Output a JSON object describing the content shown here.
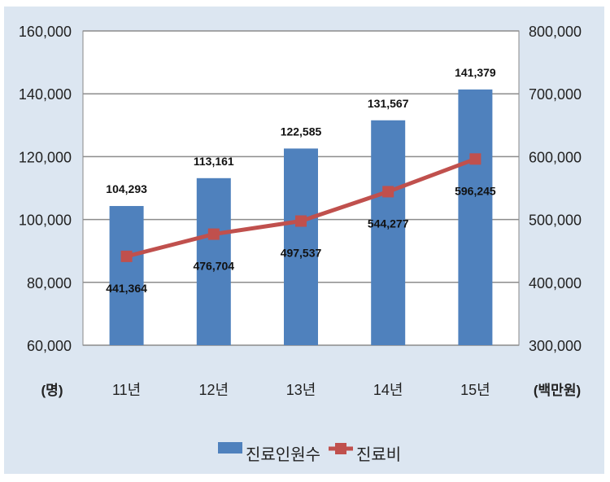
{
  "chart_data": {
    "type": "bar+line",
    "categories": [
      "11년",
      "12년",
      "13년",
      "14년",
      "15년"
    ],
    "series": [
      {
        "name": "진료인원수",
        "type": "bar",
        "axis": "left",
        "color": "#4f81bd",
        "values": [
          104293,
          113161,
          122585,
          131567,
          141379
        ],
        "labels": [
          "104,293",
          "113,161",
          "122,585",
          "131,567",
          "141,379"
        ]
      },
      {
        "name": "진료비",
        "type": "line",
        "axis": "right",
        "color": "#c0504d",
        "values": [
          441364,
          476704,
          497537,
          544277,
          596245
        ],
        "labels": [
          "441,364",
          "476,704",
          "497,537",
          "544,277",
          "596,245"
        ]
      }
    ],
    "y_left": {
      "range": [
        60000,
        160000
      ],
      "ticks": [
        "60,000",
        "80,000",
        "100,000",
        "120,000",
        "140,000",
        "160,000"
      ],
      "unit": "(명)"
    },
    "y_right": {
      "range": [
        300000,
        800000
      ],
      "ticks": [
        "300,000",
        "400,000",
        "500,000",
        "600,000",
        "700,000",
        "800,000"
      ],
      "unit": "(백만원)"
    },
    "grid": true,
    "legend": "bottom",
    "background": "#dce6f1"
  }
}
